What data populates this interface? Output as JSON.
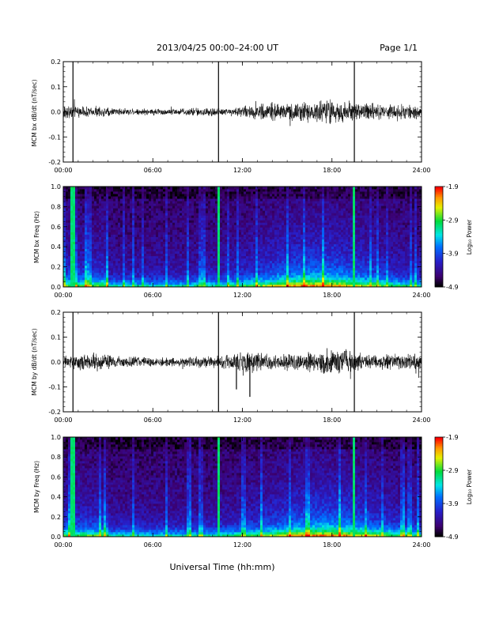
{
  "header": {
    "title": "2013/04/25  00:00–24:00 UT",
    "page": "Page 1/1"
  },
  "footer": {
    "xlabel": "Universal Time (hh:mm)"
  },
  "colors": {
    "trace": "#000000",
    "spectrogram_min": "#000000",
    "spectrogram_max": "#ff0000"
  },
  "chart_data": [
    {
      "type": "line",
      "ylabel": "MCM bx dB/dt (nT/sec)",
      "x_ticks": [
        "00:00",
        "06:00",
        "12:00",
        "18:00",
        "24:00"
      ],
      "y_ticks": [
        "0.2",
        "0.1",
        "0.0",
        "-0.1",
        "-0.2"
      ],
      "xlim": [
        0,
        24
      ],
      "ylim": [
        -0.2,
        0.2
      ],
      "x_unit": "hours UT",
      "series": [
        {
          "x": [
            0,
            1,
            2,
            3,
            4,
            5,
            6,
            7,
            8,
            9,
            10,
            11,
            12,
            13,
            14,
            15,
            16,
            17,
            18,
            19,
            20,
            21,
            22,
            23,
            24
          ],
          "amp": [
            0.03,
            0.025,
            0.025,
            0.02,
            0.015,
            0.015,
            0.015,
            0.015,
            0.015,
            0.02,
            0.02,
            0.015,
            0.025,
            0.035,
            0.04,
            0.035,
            0.045,
            0.05,
            0.055,
            0.05,
            0.04,
            0.035,
            0.035,
            0.03,
            0.03
          ]
        }
      ],
      "spikes": [
        {
          "x": 0.65,
          "min": -0.2,
          "max": 0.2
        },
        {
          "x": 10.4,
          "min": -0.2,
          "max": 0.2
        },
        {
          "x": 19.5,
          "min": -0.2,
          "max": 0.2
        }
      ]
    },
    {
      "type": "heatmap",
      "ylabel": "MCM bx Freq (Hz)",
      "x_ticks": [
        "00:00",
        "06:00",
        "12:00",
        "18:00",
        "24:00"
      ],
      "y_ticks": [
        "1.0",
        "0.8",
        "0.6",
        "0.4",
        "0.2",
        "0.0"
      ],
      "xlim": [
        0,
        24
      ],
      "ylim": [
        0,
        1
      ],
      "colorbar_label": "Log₁₀ Power",
      "colorbar_ticks": [
        "-1.9",
        "-2.9",
        "-3.9",
        "-4.9"
      ],
      "colorbar_range": [
        -4.9,
        -1.9
      ],
      "low_freq_peak_hours": [
        16,
        18
      ],
      "bright_columns": [
        0.65,
        10.4,
        19.5
      ]
    },
    {
      "type": "line",
      "ylabel": "MCM by dB/dt (nT/sec)",
      "x_ticks": [
        "00:00",
        "06:00",
        "12:00",
        "18:00",
        "24:00"
      ],
      "y_ticks": [
        "0.2",
        "0.1",
        "0.0",
        "-0.1",
        "-0.2"
      ],
      "xlim": [
        0,
        24
      ],
      "ylim": [
        -0.2,
        0.2
      ],
      "x_unit": "hours UT",
      "series": [
        {
          "x": [
            0,
            1,
            2,
            3,
            4,
            5,
            6,
            7,
            8,
            9,
            10,
            11,
            12,
            13,
            14,
            15,
            16,
            17,
            18,
            19,
            20,
            21,
            22,
            23,
            24
          ],
          "amp": [
            0.03,
            0.035,
            0.04,
            0.035,
            0.025,
            0.025,
            0.02,
            0.02,
            0.02,
            0.025,
            0.025,
            0.035,
            0.045,
            0.04,
            0.035,
            0.035,
            0.04,
            0.05,
            0.06,
            0.055,
            0.04,
            0.035,
            0.035,
            0.035,
            0.035
          ]
        }
      ],
      "spikes": [
        {
          "x": 0.65,
          "min": -0.2,
          "max": 0.2
        },
        {
          "x": 10.4,
          "min": -0.2,
          "max": 0.2
        },
        {
          "x": 19.5,
          "min": -0.2,
          "max": 0.2
        },
        {
          "x": 11.6,
          "min": -0.11,
          "max": 0.02
        },
        {
          "x": 12.5,
          "min": -0.14,
          "max": 0.02
        }
      ]
    },
    {
      "type": "heatmap",
      "ylabel": "MCM by Freq (Hz)",
      "x_ticks": [
        "00:00",
        "06:00",
        "12:00",
        "18:00",
        "24:00"
      ],
      "y_ticks": [
        "1.0",
        "0.8",
        "0.6",
        "0.4",
        "0.2",
        "0.0"
      ],
      "xlim": [
        0,
        24
      ],
      "ylim": [
        0,
        1
      ],
      "colorbar_label": "Log₁₀ Power",
      "colorbar_ticks": [
        "-1.9",
        "-2.9",
        "-3.9",
        "-4.9"
      ],
      "colorbar_range": [
        -4.9,
        -1.9
      ],
      "low_freq_peak_hours": [
        16,
        19
      ],
      "bright_columns": [
        0.65,
        10.4,
        19.5
      ]
    }
  ]
}
